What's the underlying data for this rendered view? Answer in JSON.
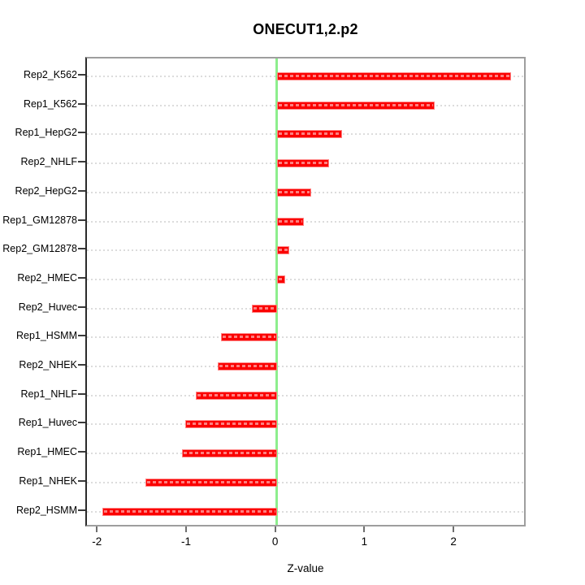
{
  "title": "ONECUT1,2.p2",
  "x_axis_label": "Z-value",
  "chart_data": {
    "type": "bar",
    "orientation": "horizontal",
    "title": "ONECUT1,2.p2",
    "xlabel": "Z-value",
    "ylabel": "",
    "categories": [
      "Rep2_K562",
      "Rep1_K562",
      "Rep1_HepG2",
      "Rep2_NHLF",
      "Rep2_HepG2",
      "Rep1_GM12878",
      "Rep2_GM12878",
      "Rep2_HMEC",
      "Rep2_Huvec",
      "Rep1_HSMM",
      "Rep2_NHEK",
      "Rep1_NHLF",
      "Rep1_Huvec",
      "Rep1_HMEC",
      "Rep1_NHEK",
      "Rep2_HSMM"
    ],
    "values": [
      2.63,
      1.77,
      0.73,
      0.59,
      0.39,
      0.3,
      0.14,
      0.09,
      -0.28,
      -0.63,
      -0.66,
      -0.91,
      -1.03,
      -1.06,
      -1.47,
      -1.96
    ],
    "xlim": [
      -2.13,
      2.81
    ],
    "xticks": [
      -2,
      -1,
      0,
      1,
      2
    ],
    "xtick_labels": [
      "-2",
      "-1",
      "0",
      "1",
      "2"
    ],
    "zero_line_at": 0,
    "grid": true,
    "legend": null,
    "colors": {
      "bar_fill": "#fb0000",
      "bar_border": "#ff8585",
      "zero_line": "#8dee8d",
      "grid_line": "#dcdcdc",
      "box_border": "#9e9e9e",
      "axis_line": "#2a2a2a",
      "text": "#000000"
    }
  }
}
